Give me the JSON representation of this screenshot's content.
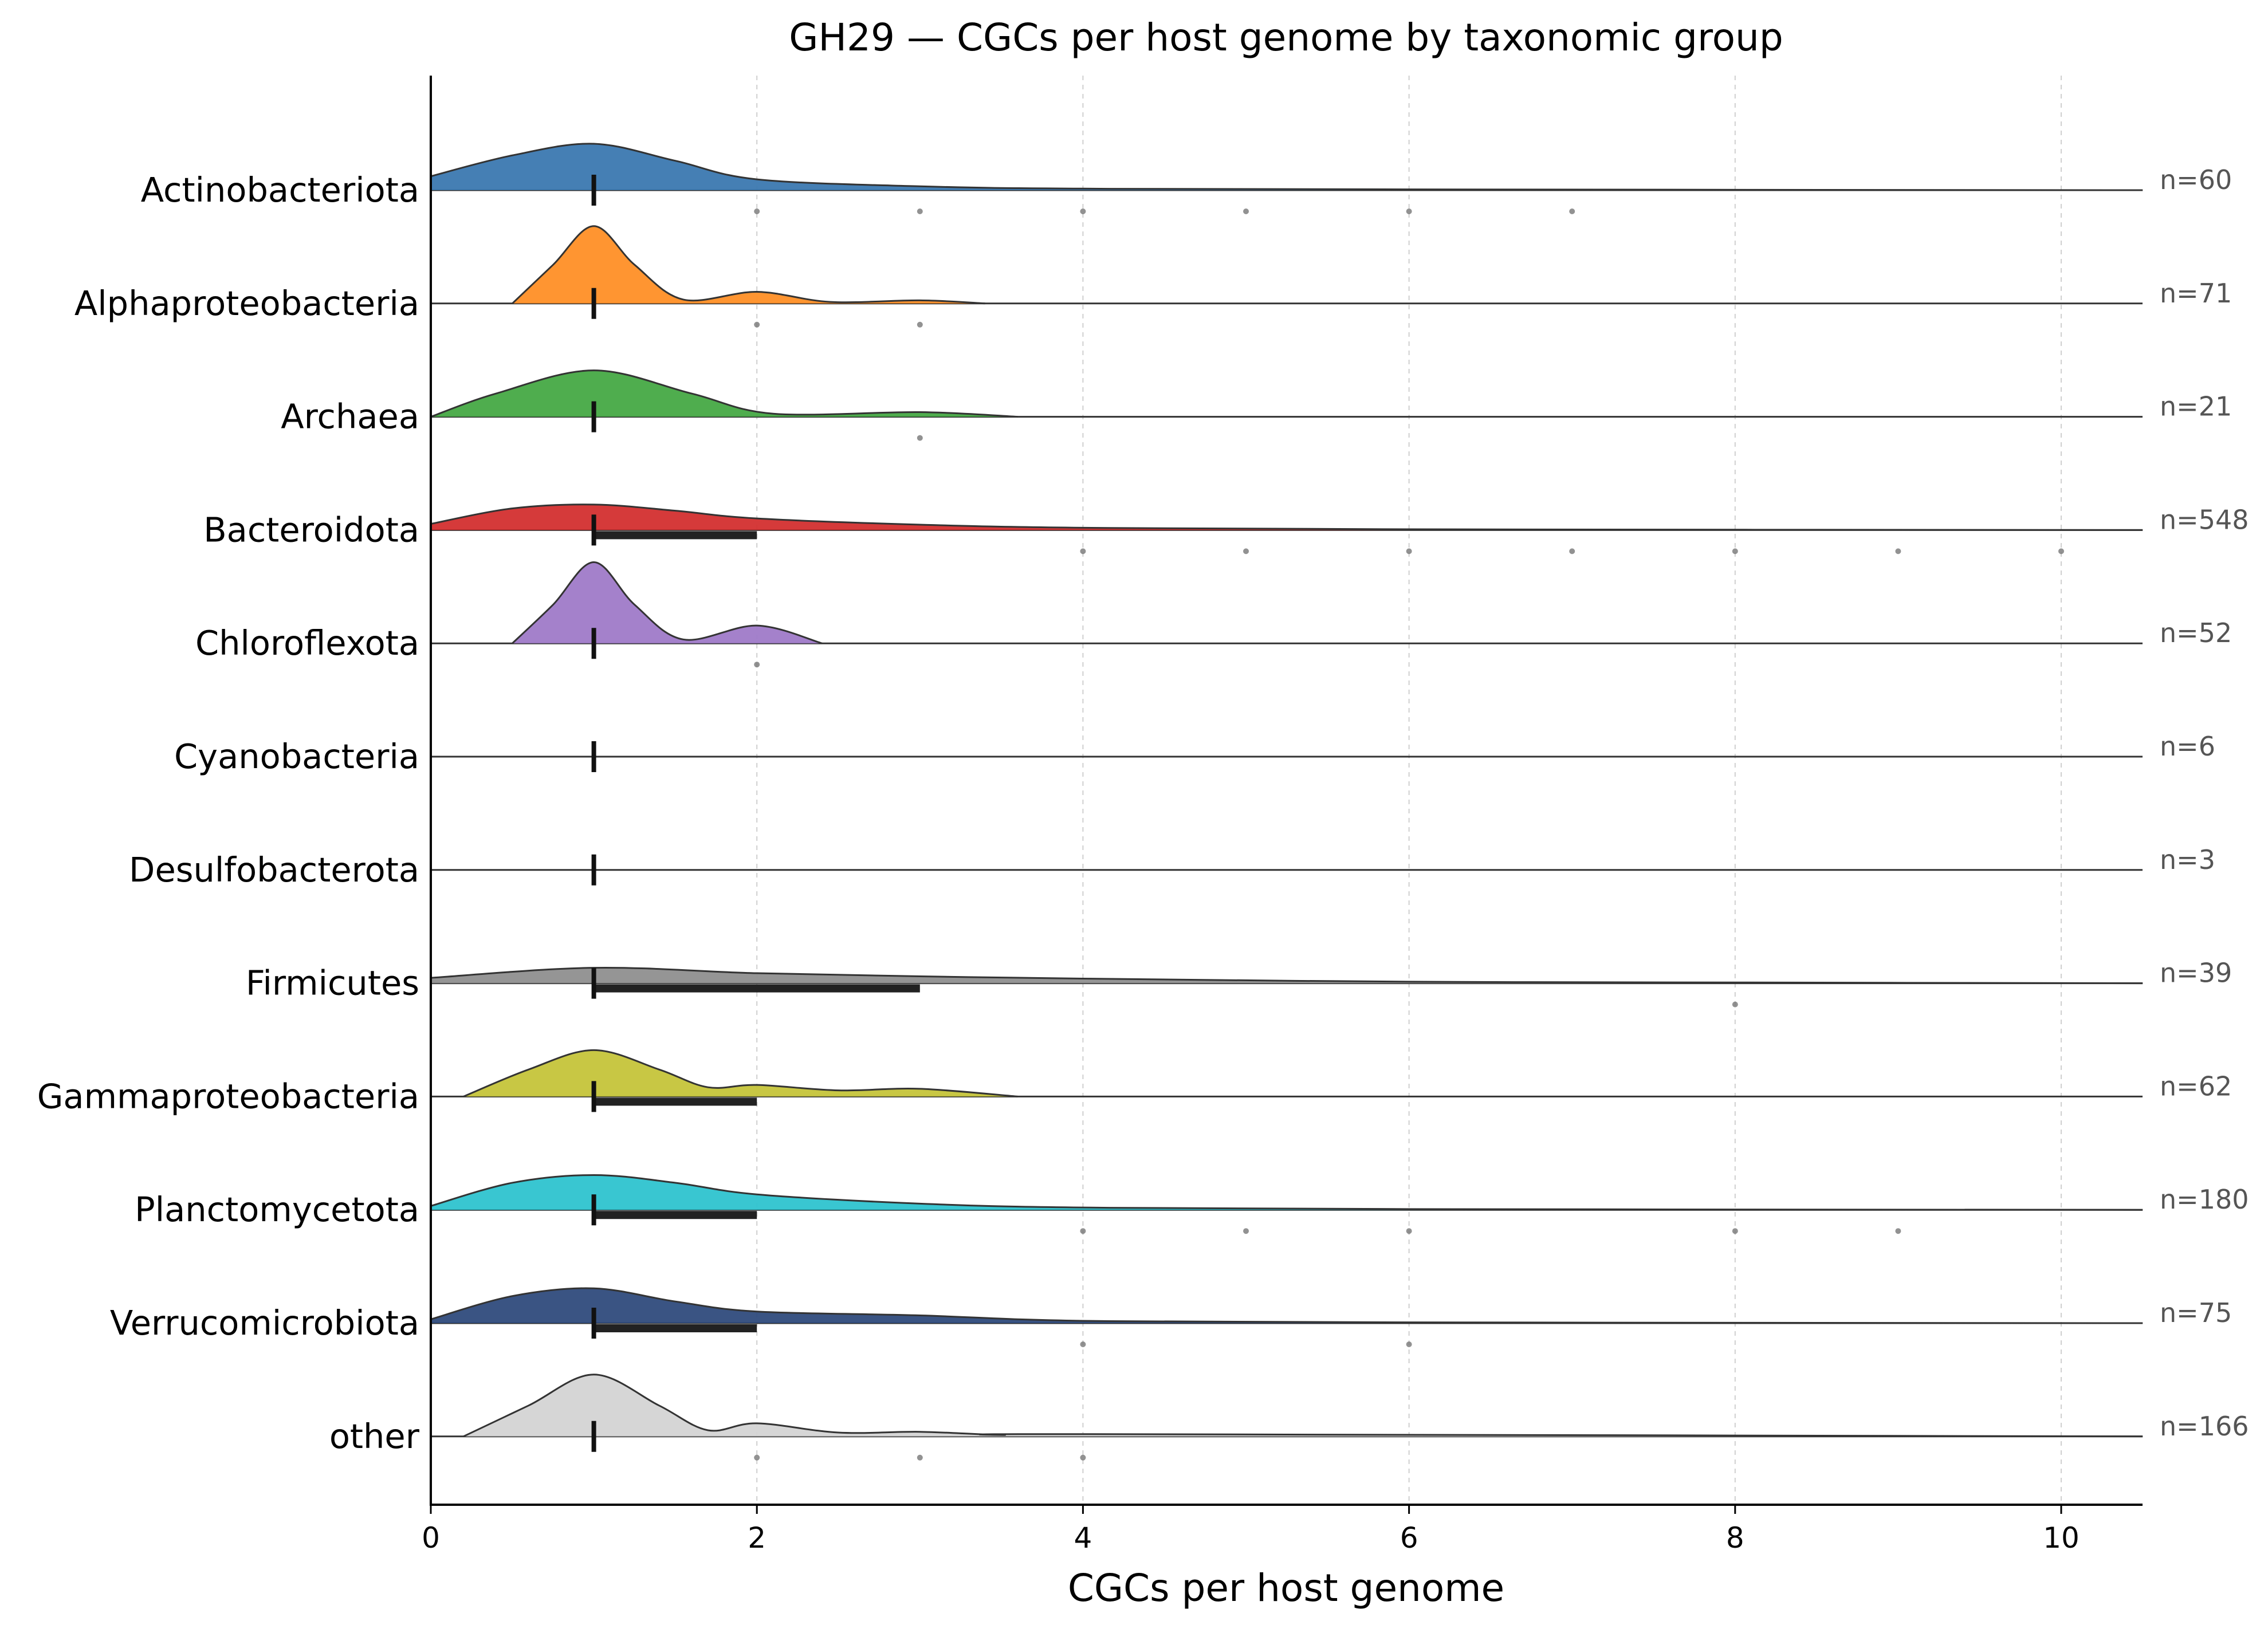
{
  "chart_data": {
    "type": "ridgeline",
    "title": "GH29 — CGCs per host genome by taxonomic group",
    "xlabel": "CGCs per host genome",
    "xlim": [
      0,
      10.5
    ],
    "xticks": [
      0,
      2,
      4,
      6,
      8,
      10
    ],
    "grid": "vertical dashed",
    "groups": [
      {
        "name": "Actinobacteriota",
        "n_label": "n=60",
        "color": "#3b78b0",
        "median": 1,
        "q1": 1,
        "q3": 1,
        "density": [
          [
            0.0,
            0.18
          ],
          [
            0.5,
            0.45
          ],
          [
            1.0,
            0.6
          ],
          [
            1.5,
            0.38
          ],
          [
            2.0,
            0.14
          ],
          [
            3.0,
            0.05
          ],
          [
            4.0,
            0.02
          ],
          [
            6.0,
            0.01
          ],
          [
            10.5,
            0.0
          ]
        ],
        "outliers": [
          2,
          3,
          4,
          5,
          6,
          7
        ]
      },
      {
        "name": "Alphaproteobacteria",
        "n_label": "n=71",
        "color": "#ff8f26",
        "median": 1,
        "q1": 1,
        "q3": 1,
        "density": [
          [
            0.5,
            0.0
          ],
          [
            0.75,
            0.5
          ],
          [
            1.0,
            1.0
          ],
          [
            1.25,
            0.5
          ],
          [
            1.55,
            0.05
          ],
          [
            2.0,
            0.15
          ],
          [
            2.45,
            0.02
          ],
          [
            3.0,
            0.04
          ],
          [
            3.4,
            0.0
          ]
        ],
        "outliers": [
          2,
          3
        ]
      },
      {
        "name": "Archaea",
        "n_label": "n=21",
        "color": "#46a945",
        "median": 1,
        "q1": 1,
        "q3": 1,
        "density": [
          [
            0.0,
            0.0
          ],
          [
            0.4,
            0.3
          ],
          [
            1.0,
            0.6
          ],
          [
            1.6,
            0.3
          ],
          [
            2.1,
            0.04
          ],
          [
            3.0,
            0.06
          ],
          [
            3.6,
            0.0
          ]
        ],
        "outliers": [
          3
        ]
      },
      {
        "name": "Bacteroidota",
        "n_label": "n=548",
        "color": "#d32f2f",
        "median": 1,
        "q1": 1,
        "q3": 2,
        "density": [
          [
            0.0,
            0.08
          ],
          [
            0.5,
            0.28
          ],
          [
            1.0,
            0.33
          ],
          [
            1.5,
            0.25
          ],
          [
            2.0,
            0.15
          ],
          [
            3.0,
            0.07
          ],
          [
            4.0,
            0.03
          ],
          [
            6.0,
            0.01
          ],
          [
            10.5,
            0.0
          ]
        ],
        "outliers": [
          4,
          5,
          6,
          7,
          8,
          9,
          10
        ]
      },
      {
        "name": "Chloroflexota",
        "n_label": "n=52",
        "color": "#9f7ac8",
        "median": 1,
        "q1": 1,
        "q3": 1,
        "density": [
          [
            0.5,
            0.0
          ],
          [
            0.75,
            0.5
          ],
          [
            1.0,
            1.05
          ],
          [
            1.25,
            0.5
          ],
          [
            1.55,
            0.05
          ],
          [
            2.0,
            0.23
          ],
          [
            2.4,
            0.0
          ]
        ],
        "outliers": [
          2
        ]
      },
      {
        "name": "Cyanobacteria",
        "n_label": "n=6",
        "color": "#8c564b",
        "median": 1,
        "q1": 1,
        "q3": 1,
        "density": [],
        "outliers": []
      },
      {
        "name": "Desulfobacterota",
        "n_label": "n=3",
        "color": "#e377c2",
        "median": 1,
        "q1": 1,
        "q3": 1,
        "density": [],
        "outliers": []
      },
      {
        "name": "Firmicutes",
        "n_label": "n=39",
        "color": "#8f8f8f",
        "median": 1,
        "q1": 1,
        "q3": 3,
        "density": [
          [
            0.0,
            0.07
          ],
          [
            1.0,
            0.2
          ],
          [
            2.0,
            0.13
          ],
          [
            3.0,
            0.09
          ],
          [
            4.0,
            0.06
          ],
          [
            6.0,
            0.02
          ],
          [
            8.0,
            0.01
          ],
          [
            10.5,
            0.0
          ]
        ],
        "outliers": [
          8
        ]
      },
      {
        "name": "Gammaproteobacteria",
        "n_label": "n=62",
        "color": "#c5c43a",
        "median": 1,
        "q1": 1,
        "q3": 2,
        "density": [
          [
            0.2,
            0.0
          ],
          [
            0.6,
            0.35
          ],
          [
            1.0,
            0.6
          ],
          [
            1.4,
            0.35
          ],
          [
            1.7,
            0.12
          ],
          [
            2.0,
            0.15
          ],
          [
            2.5,
            0.08
          ],
          [
            3.0,
            0.1
          ],
          [
            3.6,
            0.0
          ]
        ],
        "outliers": []
      },
      {
        "name": "Planctomycetota",
        "n_label": "n=180",
        "color": "#2ec3cf",
        "median": 1,
        "q1": 1,
        "q3": 2,
        "density": [
          [
            0.0,
            0.05
          ],
          [
            0.5,
            0.35
          ],
          [
            1.0,
            0.45
          ],
          [
            1.5,
            0.35
          ],
          [
            2.0,
            0.2
          ],
          [
            3.0,
            0.08
          ],
          [
            4.0,
            0.03
          ],
          [
            6.0,
            0.01
          ],
          [
            10.5,
            0.0
          ]
        ],
        "outliers": [
          4,
          5,
          6,
          8,
          9
        ]
      },
      {
        "name": "Verrucomicrobiota",
        "n_label": "n=75",
        "color": "#2f4b7c",
        "median": 1,
        "q1": 1,
        "q3": 2,
        "density": [
          [
            0.0,
            0.05
          ],
          [
            0.5,
            0.35
          ],
          [
            1.0,
            0.45
          ],
          [
            1.5,
            0.28
          ],
          [
            2.0,
            0.15
          ],
          [
            3.0,
            0.1
          ],
          [
            4.0,
            0.03
          ],
          [
            6.0,
            0.01
          ],
          [
            10.5,
            0.0
          ]
        ],
        "outliers": [
          4,
          6
        ]
      },
      {
        "name": "other",
        "n_label": "n=166",
        "color": "#d4d4d4",
        "median": 1,
        "q1": 1,
        "q3": 1,
        "density": [
          [
            0.2,
            0.0
          ],
          [
            0.6,
            0.4
          ],
          [
            1.0,
            0.8
          ],
          [
            1.4,
            0.4
          ],
          [
            1.7,
            0.08
          ],
          [
            2.0,
            0.17
          ],
          [
            2.5,
            0.05
          ],
          [
            3.0,
            0.06
          ],
          [
            3.5,
            0.02
          ],
          [
            4.0,
            0.03
          ],
          [
            10.5,
            0.0
          ]
        ],
        "outliers": [
          2,
          3,
          4
        ]
      }
    ]
  }
}
